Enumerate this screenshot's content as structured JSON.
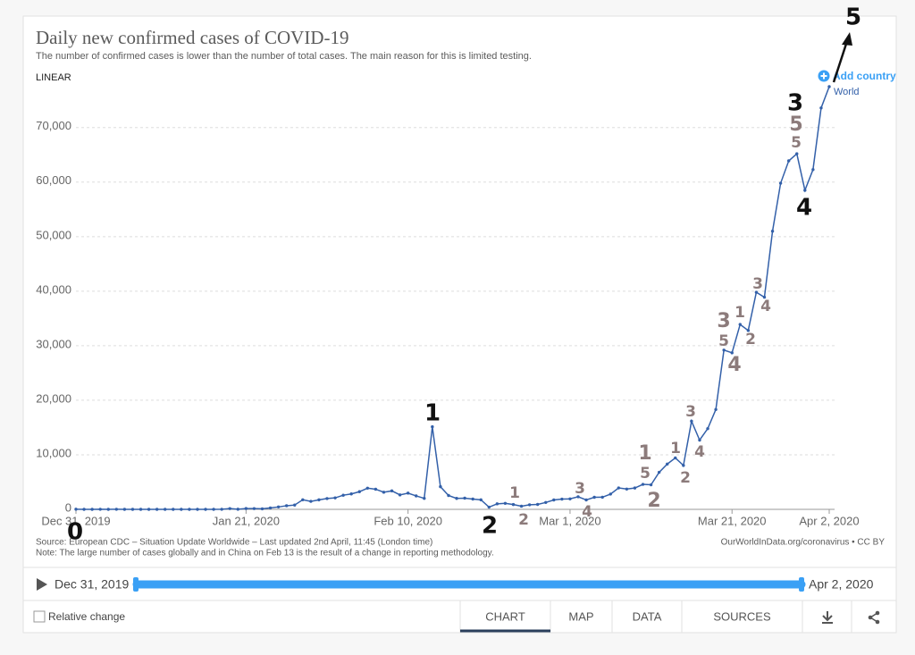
{
  "chart_data": {
    "type": "line",
    "title": "Daily new confirmed cases of COVID-19",
    "subtitle": "The number of confirmed cases is lower than the number of total cases. The main reason for this is limited testing.",
    "scale_label": "LINEAR",
    "add_country": "Add country",
    "x": [
      "2019-12-31",
      "2020-01-01",
      "2020-01-02",
      "2020-01-03",
      "2020-01-04",
      "2020-01-05",
      "2020-01-06",
      "2020-01-07",
      "2020-01-08",
      "2020-01-09",
      "2020-01-10",
      "2020-01-11",
      "2020-01-12",
      "2020-01-13",
      "2020-01-14",
      "2020-01-15",
      "2020-01-16",
      "2020-01-17",
      "2020-01-18",
      "2020-01-19",
      "2020-01-20",
      "2020-01-21",
      "2020-01-22",
      "2020-01-23",
      "2020-01-24",
      "2020-01-25",
      "2020-01-26",
      "2020-01-27",
      "2020-01-28",
      "2020-01-29",
      "2020-01-30",
      "2020-01-31",
      "2020-02-01",
      "2020-02-02",
      "2020-02-03",
      "2020-02-04",
      "2020-02-05",
      "2020-02-06",
      "2020-02-07",
      "2020-02-08",
      "2020-02-09",
      "2020-02-10",
      "2020-02-11",
      "2020-02-12",
      "2020-02-13",
      "2020-02-14",
      "2020-02-15",
      "2020-02-16",
      "2020-02-17",
      "2020-02-18",
      "2020-02-19",
      "2020-02-20",
      "2020-02-21",
      "2020-02-22",
      "2020-02-23",
      "2020-02-24",
      "2020-02-25",
      "2020-02-26",
      "2020-02-27",
      "2020-02-28",
      "2020-02-29",
      "2020-03-01",
      "2020-03-02",
      "2020-03-03",
      "2020-03-04",
      "2020-03-05",
      "2020-03-06",
      "2020-03-07",
      "2020-03-08",
      "2020-03-09",
      "2020-03-10",
      "2020-03-11",
      "2020-03-12",
      "2020-03-13",
      "2020-03-14",
      "2020-03-15",
      "2020-03-16",
      "2020-03-17",
      "2020-03-18",
      "2020-03-19",
      "2020-03-20",
      "2020-03-21",
      "2020-03-22",
      "2020-03-23",
      "2020-03-24",
      "2020-03-25",
      "2020-03-26",
      "2020-03-27",
      "2020-03-28",
      "2020-03-29",
      "2020-03-30",
      "2020-03-31",
      "2020-04-01",
      "2020-04-02"
    ],
    "series": [
      {
        "name": "World",
        "color": "#3360a9",
        "values": [
          27,
          0,
          0,
          17,
          0,
          15,
          0,
          0,
          0,
          0,
          0,
          0,
          0,
          0,
          0,
          0,
          0,
          4,
          17,
          136,
          20,
          151,
          140,
          97,
          259,
          441,
          665,
          787,
          1753,
          1466,
          1740,
          1980,
          2101,
          2590,
          2827,
          3235,
          3887,
          3694,
          3143,
          3385,
          2652,
          2973,
          2467,
          2015,
          15141,
          4156,
          2538,
          2007,
          2052,
          1890,
          1750,
          407,
          1013,
          1100,
          880,
          580,
          830,
          900,
          1260,
          1720,
          1880,
          1920,
          2310,
          1730,
          2210,
          2230,
          2800,
          3930,
          3720,
          3910,
          4580,
          4500,
          6790,
          8300,
          9430,
          8050,
          16160,
          12700,
          14800,
          18300,
          29200,
          28700,
          33900,
          32800,
          39800,
          38900,
          51000,
          59800,
          63900,
          65200,
          58500,
          62300,
          73600,
          77500
        ]
      }
    ],
    "xlim": [
      "2019-12-31",
      "2020-04-02"
    ],
    "xticks": [
      {
        "value": "2019-12-31",
        "label": "Dec 31, 2019"
      },
      {
        "value": "2020-01-21",
        "label": "Jan 21, 2020"
      },
      {
        "value": "2020-02-10",
        "label": "Feb 10, 2020"
      },
      {
        "value": "2020-03-01",
        "label": "Mar 1, 2020"
      },
      {
        "value": "2020-03-21",
        "label": "Mar 21, 2020"
      },
      {
        "value": "2020-04-02",
        "label": "Apr 2, 2020"
      }
    ],
    "ylim": [
      0,
      77500
    ],
    "yticks": [
      0,
      {
        "value": 10000,
        "label": "10,000"
      },
      {
        "value": 20000,
        "label": "20,000"
      },
      {
        "value": 30000,
        "label": "30,000"
      },
      {
        "value": 40000,
        "label": "40,000"
      },
      {
        "value": 50000,
        "label": "50,000"
      },
      {
        "value": 60000,
        "label": "60,000"
      },
      {
        "value": 70000,
        "label": "70,000"
      }
    ],
    "grid": true,
    "source": "Source: European CDC – Situation Update Worldwide – Last updated 2nd April, 11:45 (London time)",
    "note": "Note: The large number of cases globally and in China on Feb 13 is the result of a change in reporting methodology.",
    "credit": "OurWorldInData.org/coronavirus • CC BY",
    "annotations": [
      "0",
      "1",
      "2",
      "3",
      "4",
      "5",
      "1",
      "2",
      "3",
      "4",
      "1",
      "5",
      "2",
      "1",
      "2",
      "3",
      "4",
      "3",
      "5",
      "4",
      "1",
      "2",
      "3",
      "4",
      "5",
      "5"
    ]
  },
  "controls": {
    "timeline_start": "Dec 31, 2019",
    "timeline_end": "Apr 2, 2020",
    "relative_change": "Relative change",
    "tabs": [
      "CHART",
      "MAP",
      "DATA",
      "SOURCES"
    ]
  }
}
